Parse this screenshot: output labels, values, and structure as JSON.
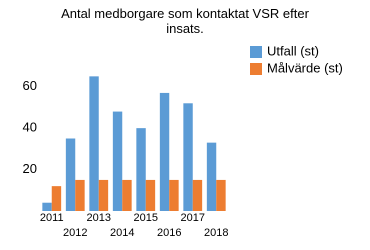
{
  "chart_data": {
    "type": "bar",
    "title": "Antal medborgare som kontaktat VSR efter insats.",
    "categories": [
      "2011",
      "2012",
      "2013",
      "2014",
      "2015",
      "2016",
      "2017",
      "2018"
    ],
    "series": [
      {
        "name": "Utfall (st)",
        "color": "#5b9bd5",
        "values": [
          4,
          35,
          65,
          48,
          40,
          57,
          52,
          33
        ]
      },
      {
        "name": "Målvärde (st)",
        "color": "#ed7d31",
        "values": [
          12,
          15,
          15,
          15,
          15,
          15,
          15,
          15
        ]
      }
    ],
    "ylim": [
      0,
      70
    ],
    "yticks": [
      20,
      40,
      60
    ],
    "grid": false
  }
}
